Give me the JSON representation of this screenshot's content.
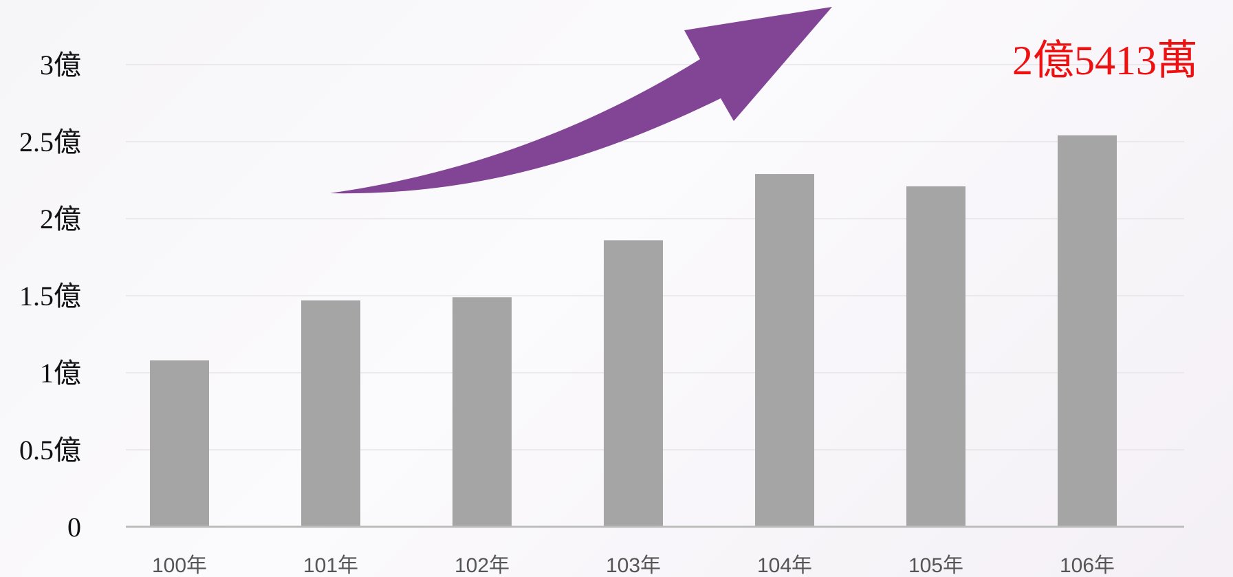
{
  "chart_data": {
    "type": "bar",
    "categories": [
      "100年",
      "101年",
      "102年",
      "103年",
      "104年",
      "105年",
      "106年"
    ],
    "values": [
      1.08,
      1.47,
      1.49,
      1.86,
      2.29,
      2.21,
      2.5413
    ],
    "ylim": [
      0,
      3
    ],
    "yticks": [
      {
        "value": 0,
        "label": "0"
      },
      {
        "value": 0.5,
        "label": "0.5億"
      },
      {
        "value": 1,
        "label": "1億"
      },
      {
        "value": 1.5,
        "label": "1.5億"
      },
      {
        "value": 2,
        "label": "2億"
      },
      {
        "value": 2.5,
        "label": "2.5億"
      },
      {
        "value": 3,
        "label": "3億"
      }
    ],
    "grid": true,
    "bar_color": "#a5a5a5",
    "annotation": "2億5413萬",
    "annotation_color": "#ee1111",
    "trend_arrow": "upward",
    "arrow_color": "#824495"
  }
}
